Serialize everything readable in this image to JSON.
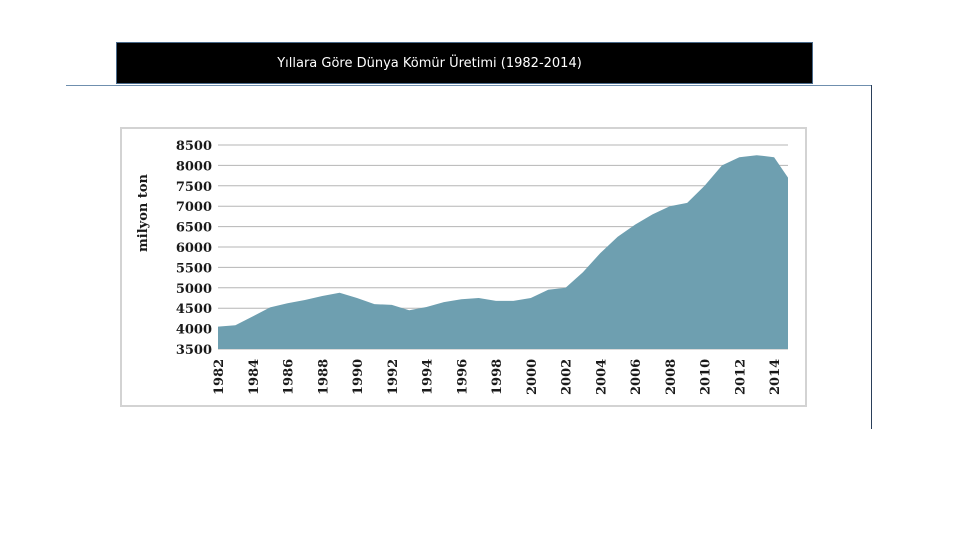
{
  "title": "Yıllara Göre Dünya Kömür  Üretimi (1982-2014)",
  "chart_data": {
    "type": "area",
    "title": "Yıllara Göre Dünya Kömür  Üretimi (1982-2014)",
    "xlabel": "",
    "ylabel": "milyon ton",
    "ylim": [
      3500,
      8500
    ],
    "yticks": [
      3500,
      4000,
      4500,
      5000,
      5500,
      6000,
      6500,
      7000,
      7500,
      8000,
      8500
    ],
    "xticks": [
      "1982",
      "1984",
      "1986",
      "1988",
      "1990",
      "1992",
      "1994",
      "1996",
      "1998",
      "2000",
      "2002",
      "2004",
      "2006",
      "2008",
      "2010",
      "2012",
      "2014"
    ],
    "grid": true,
    "fill_color": "#6e9fb0",
    "x": [
      1982,
      1983,
      1984,
      1985,
      1986,
      1987,
      1988,
      1989,
      1990,
      1991,
      1992,
      1993,
      1994,
      1995,
      1996,
      1997,
      1998,
      1999,
      2000,
      2001,
      2002,
      2003,
      2004,
      2005,
      2006,
      2007,
      2008,
      2009,
      2010,
      2011,
      2012,
      2013,
      2014,
      2014.8
    ],
    "series": [
      {
        "values": [
          4050,
          4080,
          4300,
          4520,
          4620,
          4700,
          4800,
          4880,
          4750,
          4600,
          4580,
          4450,
          4530,
          4650,
          4720,
          4750,
          4680,
          4680,
          4750,
          4950,
          5000,
          5380,
          5850,
          6250,
          6550,
          6800,
          7000,
          7080,
          7500,
          8000,
          8200,
          8250,
          8200,
          7700
        ]
      }
    ]
  }
}
